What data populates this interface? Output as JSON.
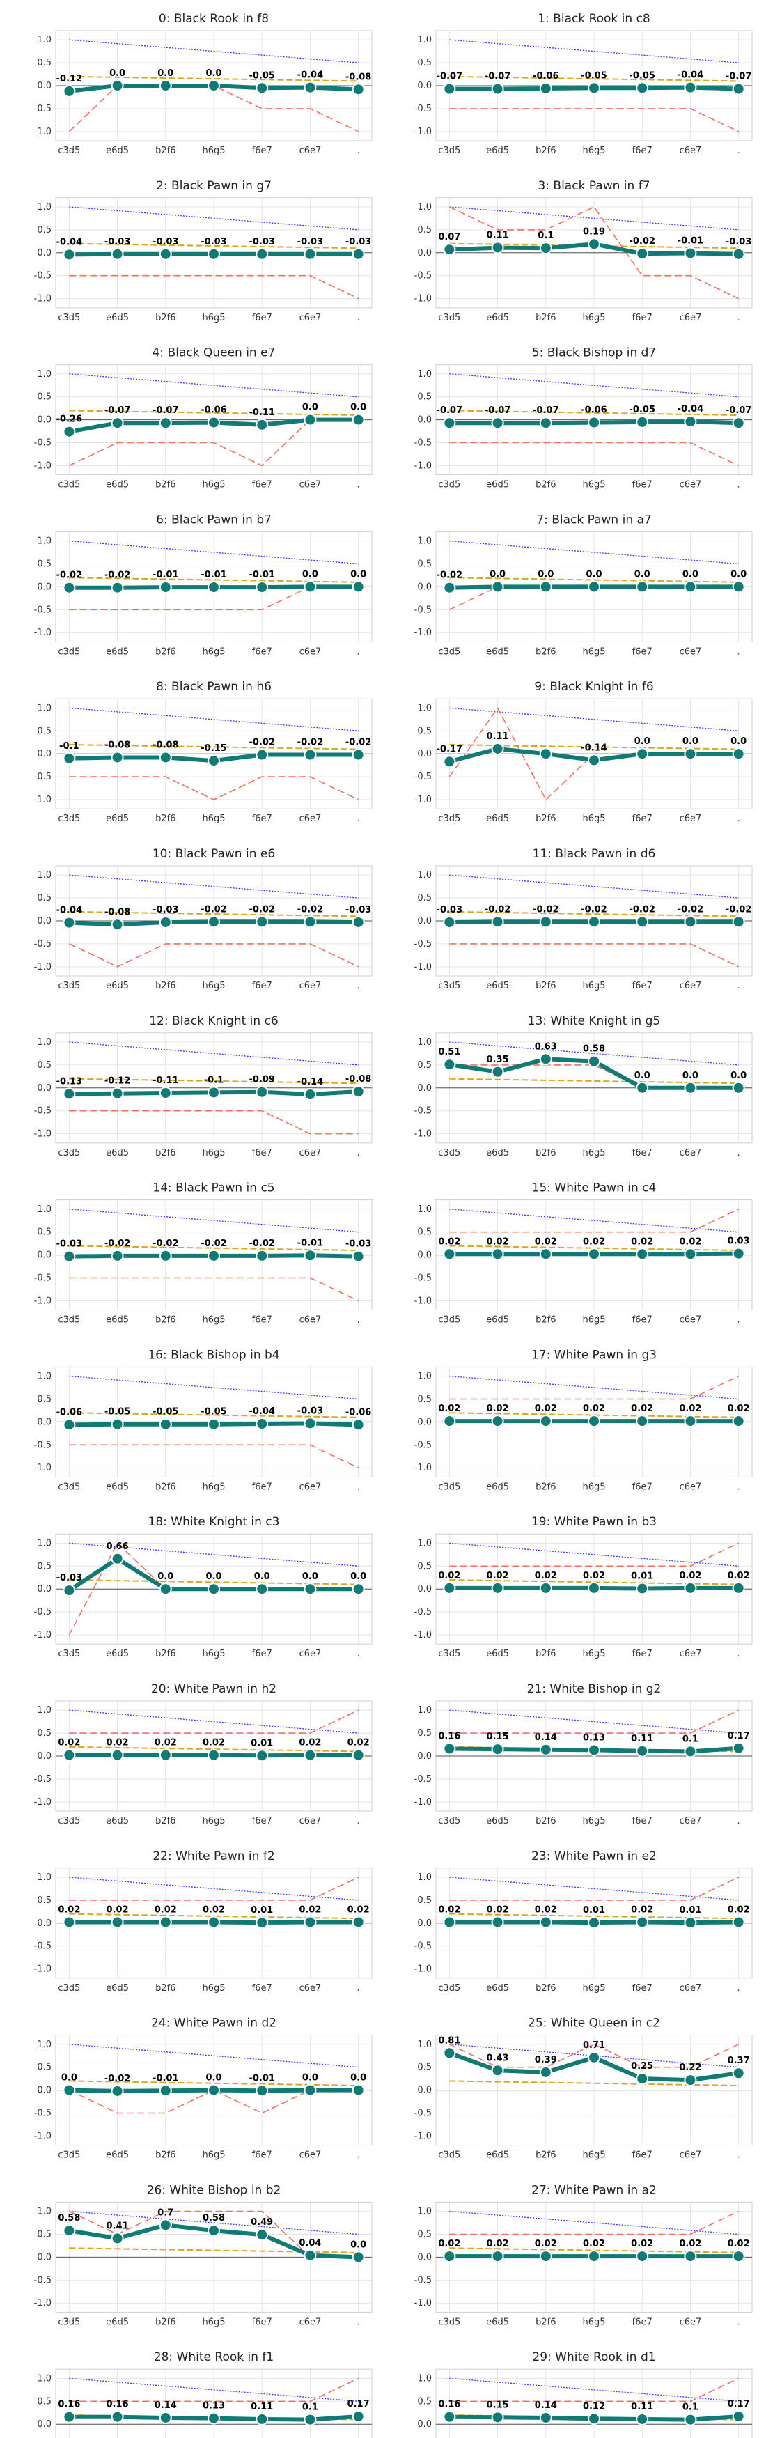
{
  "chart_data": {
    "type": "line",
    "x": [
      "c3d5",
      "e6d5",
      "b2f6",
      "h6g5",
      "f6e7",
      "c6e7",
      "."
    ],
    "yticks": [
      "1.0",
      "0.5",
      "0.0",
      "-0.5",
      "-1.0"
    ],
    "ylim": [
      -1.2,
      1.2
    ],
    "grid": true,
    "colors": {
      "main": "#127a74",
      "ref_dashed": "#daa520",
      "ref_blue": "#3333ee",
      "ref_red": "#f07060",
      "zero": "#555555"
    },
    "panels": [
      {
        "title": "0: Black Rook in f8",
        "values": [
          -0.12,
          0.0,
          0.0,
          0.0,
          -0.05,
          -0.04,
          -0.08
        ],
        "labels": [
          "-0.12",
          "0.0",
          "0.0",
          "0.0",
          "-0.05",
          "-0.04",
          "-0.08"
        ],
        "red": [
          -1.0,
          0.0,
          0.0,
          0.0,
          -0.5,
          -0.5,
          -1.0
        ]
      },
      {
        "title": "1: Black Rook in c8",
        "values": [
          -0.07,
          -0.07,
          -0.06,
          -0.05,
          -0.05,
          -0.04,
          -0.07
        ],
        "labels": [
          "-0.07",
          "-0.07",
          "-0.06",
          "-0.05",
          "-0.05",
          "-0.04",
          "-0.07"
        ],
        "red": [
          -0.5,
          -0.5,
          -0.5,
          -0.5,
          -0.5,
          -0.5,
          -1.0
        ]
      },
      {
        "title": "2: Black Pawn in g7",
        "values": [
          -0.04,
          -0.03,
          -0.03,
          -0.03,
          -0.03,
          -0.03,
          -0.03
        ],
        "labels": [
          "-0.04",
          "-0.03",
          "-0.03",
          "-0.03",
          "-0.03",
          "-0.03",
          "-0.03"
        ],
        "red": [
          -0.5,
          -0.5,
          -0.5,
          -0.5,
          -0.5,
          -0.5,
          -1.0
        ]
      },
      {
        "title": "3: Black Pawn in f7",
        "values": [
          0.07,
          0.11,
          0.1,
          0.19,
          -0.02,
          -0.01,
          -0.03
        ],
        "labels": [
          "0.07",
          "0.11",
          "0.1",
          "0.19",
          "-0.02",
          "-0.01",
          "-0.03"
        ],
        "red": [
          1.0,
          0.5,
          0.5,
          1.0,
          -0.5,
          -0.5,
          -1.0
        ]
      },
      {
        "title": "4: Black Queen in e7",
        "values": [
          -0.26,
          -0.07,
          -0.07,
          -0.06,
          -0.11,
          0.0,
          0.0
        ],
        "labels": [
          "-0.26",
          "-0.07",
          "-0.07",
          "-0.06",
          "-0.11",
          "0.0",
          "0.0"
        ],
        "red": [
          -1.0,
          -0.5,
          -0.5,
          -0.5,
          -1.0,
          0.0,
          0.0
        ]
      },
      {
        "title": "5: Black Bishop in d7",
        "values": [
          -0.07,
          -0.07,
          -0.07,
          -0.06,
          -0.05,
          -0.04,
          -0.07
        ],
        "labels": [
          "-0.07",
          "-0.07",
          "-0.07",
          "-0.06",
          "-0.05",
          "-0.04",
          "-0.07"
        ],
        "red": [
          -0.5,
          -0.5,
          -0.5,
          -0.5,
          -0.5,
          -0.5,
          -1.0
        ]
      },
      {
        "title": "6: Black Pawn in b7",
        "values": [
          -0.02,
          -0.02,
          -0.01,
          -0.01,
          -0.01,
          0.0,
          0.0
        ],
        "labels": [
          "-0.02",
          "-0.02",
          "-0.01",
          "-0.01",
          "-0.01",
          "0.0",
          "0.0"
        ],
        "red": [
          -0.5,
          -0.5,
          -0.5,
          -0.5,
          -0.5,
          0.0,
          0.0
        ]
      },
      {
        "title": "7: Black Pawn in a7",
        "values": [
          -0.02,
          0.0,
          0.0,
          0.0,
          0.0,
          0.0,
          0.0
        ],
        "labels": [
          "-0.02",
          "0.0",
          "0.0",
          "0.0",
          "0.0",
          "0.0",
          "0.0"
        ],
        "red": [
          -0.5,
          0.0,
          0.0,
          0.0,
          0.0,
          0.0,
          0.0
        ]
      },
      {
        "title": "8: Black Pawn in h6",
        "values": [
          -0.1,
          -0.08,
          -0.08,
          -0.15,
          -0.02,
          -0.02,
          -0.02
        ],
        "labels": [
          "-0.1",
          "-0.08",
          "-0.08",
          "-0.15",
          "-0.02",
          "-0.02",
          "-0.02"
        ],
        "red": [
          -0.5,
          -0.5,
          -0.5,
          -1.0,
          -0.5,
          -0.5,
          -1.0
        ]
      },
      {
        "title": "9: Black Knight in f6",
        "values": [
          -0.17,
          0.11,
          0.0,
          -0.14,
          0.0,
          0.0,
          0.0
        ],
        "labels": [
          "-0.17",
          "0.11",
          "",
          "-0.14",
          "0.0",
          "0.0",
          "0.0"
        ],
        "red": [
          -0.5,
          1.0,
          -1.0,
          0.0,
          0.0,
          0.0,
          0.0
        ]
      },
      {
        "title": "10: Black Pawn in e6",
        "values": [
          -0.04,
          -0.08,
          -0.03,
          -0.02,
          -0.02,
          -0.02,
          -0.03
        ],
        "labels": [
          "-0.04",
          "-0.08",
          "-0.03",
          "-0.02",
          "-0.02",
          "-0.02",
          "-0.03"
        ],
        "red": [
          -0.5,
          -1.0,
          -0.5,
          -0.5,
          -0.5,
          -0.5,
          -1.0
        ]
      },
      {
        "title": "11: Black Pawn in d6",
        "values": [
          -0.03,
          -0.02,
          -0.02,
          -0.02,
          -0.02,
          -0.02,
          -0.02
        ],
        "labels": [
          "-0.03",
          "-0.02",
          "-0.02",
          "-0.02",
          "-0.02",
          "-0.02",
          "-0.02"
        ],
        "red": [
          -0.5,
          -0.5,
          -0.5,
          -0.5,
          -0.5,
          -0.5,
          -1.0
        ]
      },
      {
        "title": "12: Black Knight in c6",
        "values": [
          -0.13,
          -0.12,
          -0.11,
          -0.1,
          -0.09,
          -0.14,
          -0.08
        ],
        "labels": [
          "-0.13",
          "-0.12",
          "-0.11",
          "-0.1",
          "-0.09",
          "-0.14",
          "-0.08"
        ],
        "red": [
          -0.5,
          -0.5,
          -0.5,
          -0.5,
          -0.5,
          -1.0,
          -1.0
        ]
      },
      {
        "title": "13: White Knight in g5",
        "values": [
          0.51,
          0.35,
          0.63,
          0.58,
          0.0,
          0.0,
          0.0
        ],
        "labels": [
          "0.51",
          "0.35",
          "0.63",
          "0.58",
          "0.0",
          "0.0",
          "0.0"
        ],
        "red": [
          0.5,
          0.5,
          0.5,
          0.5,
          0.0,
          0.0,
          0.0
        ]
      },
      {
        "title": "14: Black Pawn in c5",
        "values": [
          -0.03,
          -0.02,
          -0.02,
          -0.02,
          -0.02,
          -0.01,
          -0.03
        ],
        "labels": [
          "-0.03",
          "-0.02",
          "-0.02",
          "-0.02",
          "-0.02",
          "-0.01",
          "-0.03"
        ],
        "red": [
          -0.5,
          -0.5,
          -0.5,
          -0.5,
          -0.5,
          -0.5,
          -1.0
        ]
      },
      {
        "title": "15: White Pawn in c4",
        "values": [
          0.02,
          0.02,
          0.02,
          0.02,
          0.02,
          0.02,
          0.03
        ],
        "labels": [
          "0.02",
          "0.02",
          "0.02",
          "0.02",
          "0.02",
          "0.02",
          "0.03"
        ],
        "red": [
          0.5,
          0.5,
          0.5,
          0.5,
          0.5,
          0.5,
          1.0
        ]
      },
      {
        "title": "16: Black Bishop in b4",
        "values": [
          -0.06,
          -0.05,
          -0.05,
          -0.05,
          -0.04,
          -0.03,
          -0.06
        ],
        "labels": [
          "-0.06",
          "-0.05",
          "-0.05",
          "-0.05",
          "-0.04",
          "-0.03",
          "-0.06"
        ],
        "red": [
          -0.5,
          -0.5,
          -0.5,
          -0.5,
          -0.5,
          -0.5,
          -1.0
        ]
      },
      {
        "title": "17: White Pawn in g3",
        "values": [
          0.02,
          0.02,
          0.02,
          0.02,
          0.02,
          0.02,
          0.02
        ],
        "labels": [
          "0.02",
          "0.02",
          "0.02",
          "0.02",
          "0.02",
          "0.02",
          "0.02"
        ],
        "red": [
          0.5,
          0.5,
          0.5,
          0.5,
          0.5,
          0.5,
          1.0
        ]
      },
      {
        "title": "18: White Knight in c3",
        "values": [
          -0.03,
          0.66,
          0.0,
          0.0,
          0.0,
          0.0,
          0.0
        ],
        "labels": [
          "-0.03",
          "0.66",
          "0.0",
          "0.0",
          "0.0",
          "0.0",
          "0.0"
        ],
        "red": [
          -1.0,
          1.0,
          0.0,
          0.0,
          0.0,
          0.0,
          0.0
        ]
      },
      {
        "title": "19: White Pawn in b3",
        "values": [
          0.02,
          0.02,
          0.02,
          0.02,
          0.01,
          0.02,
          0.02
        ],
        "labels": [
          "0.02",
          "0.02",
          "0.02",
          "0.02",
          "0.01",
          "0.02",
          "0.02"
        ],
        "red": [
          0.5,
          0.5,
          0.5,
          0.5,
          0.5,
          0.5,
          1.0
        ]
      },
      {
        "title": "20: White Pawn in h2",
        "values": [
          0.02,
          0.02,
          0.02,
          0.02,
          0.01,
          0.02,
          0.02
        ],
        "labels": [
          "0.02",
          "0.02",
          "0.02",
          "0.02",
          "0.01",
          "0.02",
          "0.02"
        ],
        "red": [
          0.5,
          0.5,
          0.5,
          0.5,
          0.5,
          0.5,
          1.0
        ]
      },
      {
        "title": "21: White Bishop in g2",
        "values": [
          0.16,
          0.15,
          0.14,
          0.13,
          0.11,
          0.1,
          0.17
        ],
        "labels": [
          "0.16",
          "0.15",
          "0.14",
          "0.13",
          "0.11",
          "0.1",
          "0.17"
        ],
        "red": [
          0.5,
          0.5,
          0.5,
          0.5,
          0.5,
          0.5,
          1.0
        ]
      },
      {
        "title": "22: White Pawn in f2",
        "values": [
          0.02,
          0.02,
          0.02,
          0.02,
          0.01,
          0.02,
          0.02
        ],
        "labels": [
          "0.02",
          "0.02",
          "0.02",
          "0.02",
          "0.01",
          "0.02",
          "0.02"
        ],
        "red": [
          0.5,
          0.5,
          0.5,
          0.5,
          0.5,
          0.5,
          1.0
        ]
      },
      {
        "title": "23: White Pawn in e2",
        "values": [
          0.02,
          0.02,
          0.02,
          0.01,
          0.02,
          0.01,
          0.02
        ],
        "labels": [
          "0.02",
          "0.02",
          "0.02",
          "0.01",
          "0.02",
          "0.01",
          "0.02"
        ],
        "red": [
          0.5,
          0.5,
          0.5,
          0.5,
          0.5,
          0.5,
          1.0
        ]
      },
      {
        "title": "24: White Pawn in d2",
        "values": [
          0.0,
          -0.02,
          -0.01,
          0.0,
          -0.01,
          0.0,
          0.0
        ],
        "labels": [
          "0.0",
          "-0.02",
          "-0.01",
          "0.0",
          "-0.01",
          "0.0",
          "0.0"
        ],
        "red": [
          0.0,
          -0.5,
          -0.5,
          0.0,
          -0.5,
          0.0,
          0.0
        ]
      },
      {
        "title": "25: White Queen in c2",
        "values": [
          0.81,
          0.43,
          0.39,
          0.71,
          0.25,
          0.22,
          0.37
        ],
        "labels": [
          "0.81",
          "0.43",
          "0.39",
          "0.71",
          "0.25",
          "0.22",
          "0.37"
        ],
        "red": [
          1.0,
          0.5,
          0.5,
          1.0,
          0.5,
          0.5,
          1.0
        ]
      },
      {
        "title": "26: White Bishop in b2",
        "values": [
          0.58,
          0.41,
          0.7,
          0.58,
          0.49,
          0.04,
          0.0
        ],
        "labels": [
          "0.58",
          "0.41",
          "0.7",
          "0.58",
          "0.49",
          "0.04",
          "0.0"
        ],
        "red": [
          1.0,
          0.5,
          1.0,
          1.0,
          1.0,
          0.0,
          0.0
        ]
      },
      {
        "title": "27: White Pawn in a2",
        "values": [
          0.02,
          0.02,
          0.02,
          0.02,
          0.02,
          0.02,
          0.02
        ],
        "labels": [
          "0.02",
          "0.02",
          "0.02",
          "0.02",
          "0.02",
          "0.02",
          "0.02"
        ],
        "red": [
          0.5,
          0.5,
          0.5,
          0.5,
          0.5,
          0.5,
          1.0
        ]
      },
      {
        "title": "28: White Rook in f1",
        "values": [
          0.16,
          0.16,
          0.14,
          0.13,
          0.11,
          0.1,
          0.17
        ],
        "labels": [
          "0.16",
          "0.16",
          "0.14",
          "0.13",
          "0.11",
          "0.1",
          "0.17"
        ],
        "red": [
          0.5,
          0.5,
          0.5,
          0.5,
          0.5,
          0.5,
          1.0
        ]
      },
      {
        "title": "29: White Rook in d1",
        "values": [
          0.16,
          0.15,
          0.14,
          0.12,
          0.11,
          0.1,
          0.17
        ],
        "labels": [
          "0.16",
          "0.15",
          "0.14",
          "0.12",
          "0.11",
          "0.1",
          "0.17"
        ],
        "red": [
          0.5,
          0.5,
          0.5,
          0.5,
          0.5,
          0.5,
          1.0
        ]
      }
    ]
  }
}
